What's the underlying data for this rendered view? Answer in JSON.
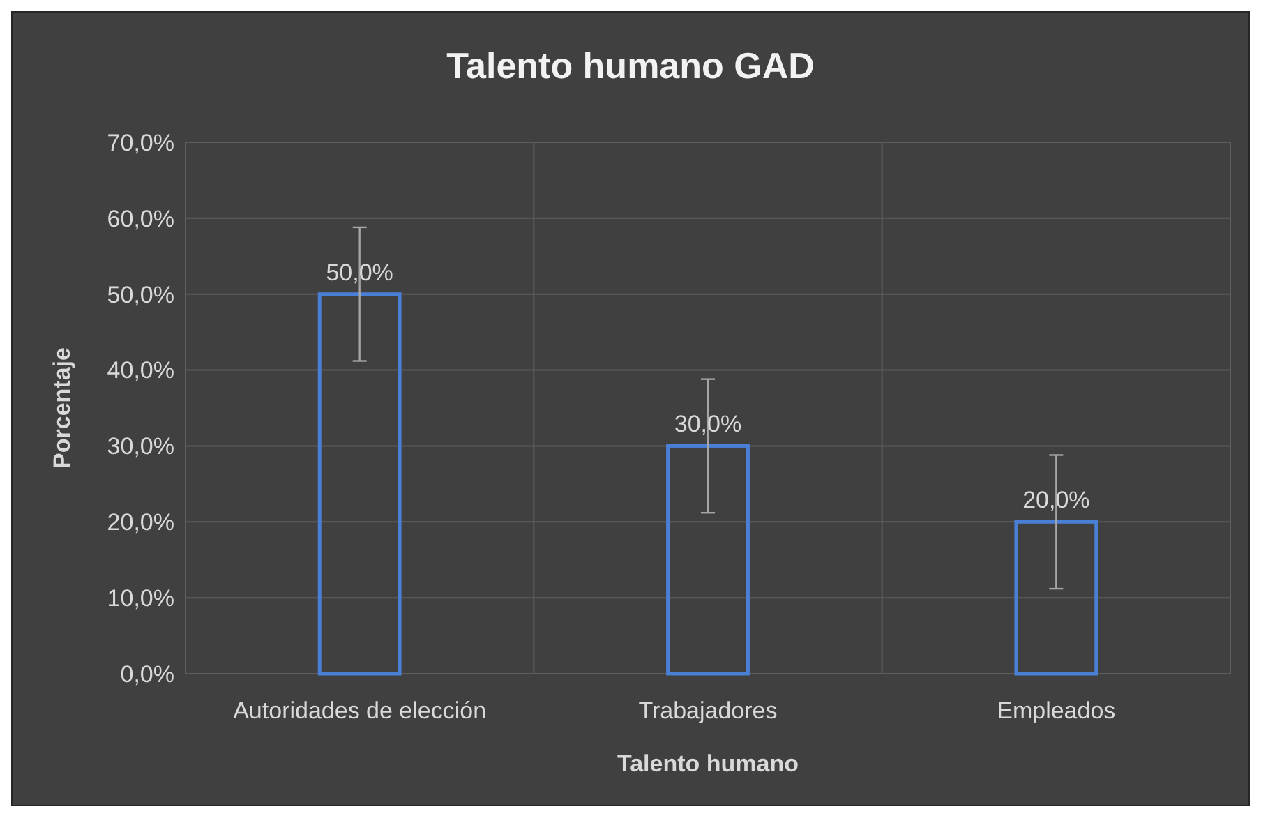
{
  "chart_data": {
    "type": "bar",
    "title": "Talento humano GAD",
    "xlabel": "Talento humano",
    "ylabel": "Porcentaje",
    "categories": [
      "Autoridades de elección",
      "Trabajadores",
      "Empleados"
    ],
    "values": [
      50,
      30,
      20
    ],
    "color": "#4a7fd6",
    "errors": [
      8.8,
      8.8,
      8.8
    ],
    "value_labels": [
      "50,0%",
      "30,0%",
      "20,0%"
    ],
    "ylim": [
      0,
      70
    ],
    "yticks": [
      {
        "value": 0,
        "label": "0,0%"
      },
      {
        "value": 10,
        "label": "10,0%"
      },
      {
        "value": 20,
        "label": "20,0%"
      },
      {
        "value": 30,
        "label": "30,0%"
      },
      {
        "value": 40,
        "label": "40,0%"
      },
      {
        "value": 50,
        "label": "50,0%"
      },
      {
        "value": 60,
        "label": "60,0%"
      },
      {
        "value": 70,
        "label": "70,0%"
      }
    ],
    "grid": true
  }
}
